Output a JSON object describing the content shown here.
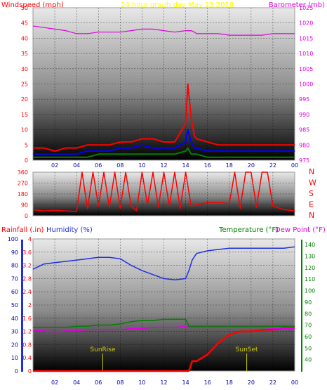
{
  "header": {
    "left_label": "Windspeed (mph)",
    "center_label": "24 hour graph day   May 13 2018",
    "right_label": "Barometer (mb)"
  },
  "colors": {
    "wind": "#ff0000",
    "gust": "#0000ff",
    "wind_avg": "#008000",
    "barometer": "#e000e0",
    "direction": "#ff0000",
    "humidity": "#2030e0",
    "rain": "#ff0000",
    "temperature": "#008000",
    "dewpoint": "#e000e0",
    "sun_marker": "#cccc00",
    "title": "#ffff00"
  },
  "x_ticks": [
    "02",
    "04",
    "06",
    "08",
    "10",
    "12",
    "14",
    "16",
    "18",
    "20",
    "22",
    "00"
  ],
  "chart_data": [
    {
      "type": "line",
      "name": "wind-and-barometer",
      "x": [
        0,
        1,
        2,
        3,
        4,
        5,
        6,
        7,
        8,
        9,
        10,
        11,
        12,
        13,
        14,
        14.2,
        14.5,
        14.8,
        15,
        16,
        17,
        18,
        19,
        20,
        21,
        22,
        23,
        24
      ],
      "series": [
        {
          "name": "windspeed",
          "axis": "left",
          "values": [
            4,
            4,
            3,
            4,
            4,
            5,
            5,
            5,
            6,
            6,
            7,
            7,
            6,
            6,
            12,
            25,
            14,
            8,
            7,
            6,
            5,
            5,
            5,
            5,
            5,
            5,
            5,
            5
          ]
        },
        {
          "name": "gust",
          "axis": "left",
          "values": [
            2,
            2,
            2,
            2,
            2,
            3,
            3,
            3,
            4,
            4,
            5,
            4,
            4,
            4,
            6,
            10,
            6,
            4,
            4,
            3,
            3,
            3,
            3,
            3,
            3,
            3,
            3,
            3
          ]
        },
        {
          "name": "average",
          "axis": "left",
          "values": [
            1,
            1,
            1,
            1,
            1,
            1,
            2,
            2,
            2,
            2,
            2,
            2,
            2,
            2,
            3,
            4,
            2,
            2,
            2,
            1,
            1,
            1,
            1,
            1,
            1,
            1,
            1,
            1
          ]
        },
        {
          "name": "barometer",
          "axis": "right",
          "values": [
            1019,
            1018.5,
            1018,
            1017.5,
            1016.5,
            1016.5,
            1017,
            1017,
            1017,
            1017.5,
            1018,
            1018,
            1017.5,
            1017,
            1017.5,
            1017.5,
            1017.5,
            1017,
            1016.5,
            1016.5,
            1016.5,
            1016,
            1016,
            1016,
            1016,
            1016.5,
            1016.5,
            1016.5
          ]
        }
      ],
      "left_axis": {
        "title": "Windspeed (mph)",
        "ylim": [
          0,
          50
        ],
        "ticks": [
          0,
          5,
          10,
          15,
          20,
          25,
          30,
          35,
          40,
          45,
          50
        ]
      },
      "right_axis": {
        "title": "Barometer (mb)",
        "ylim": [
          975,
          1025
        ],
        "ticks": [
          975,
          980,
          985,
          990,
          995,
          1000,
          1005,
          1010,
          1015,
          1020,
          1025
        ]
      }
    },
    {
      "type": "line",
      "name": "wind-direction",
      "x": [
        0,
        1,
        2,
        3,
        4,
        4.5,
        5,
        5.5,
        6,
        6.5,
        7,
        7.5,
        8,
        8.5,
        9,
        9.5,
        10,
        10.5,
        11,
        11.5,
        12,
        12.5,
        13,
        13.5,
        14,
        14.5,
        15,
        16,
        17,
        18,
        18.5,
        19,
        19.5,
        20,
        20.5,
        21,
        21.5,
        22,
        23,
        24
      ],
      "series": [
        {
          "name": "direction",
          "values": [
            50,
            40,
            45,
            40,
            35,
            360,
            60,
            360,
            80,
            360,
            70,
            360,
            60,
            360,
            80,
            40,
            360,
            90,
            360,
            70,
            360,
            80,
            360,
            60,
            360,
            80,
            90,
            110,
            110,
            100,
            360,
            60,
            360,
            360,
            70,
            360,
            360,
            80,
            50,
            40
          ]
        }
      ],
      "left_axis": {
        "ylim": [
          0,
          360
        ],
        "ticks": [
          0,
          90,
          180,
          270,
          360
        ]
      },
      "right_axis": {
        "labels": [
          "N",
          "W",
          "S",
          "E",
          "N"
        ]
      }
    },
    {
      "type": "line",
      "name": "rain-humidity-temperature",
      "x": [
        0,
        1,
        2,
        3,
        4,
        5,
        6,
        7,
        8,
        9,
        10,
        11,
        12,
        13,
        14,
        14.3,
        14.6,
        15,
        16,
        17,
        18,
        19,
        20,
        21,
        22,
        23,
        24
      ],
      "series": [
        {
          "name": "humidity",
          "axis": "humidity",
          "values": [
            77,
            81,
            82,
            83,
            84,
            85,
            86,
            86,
            85,
            80,
            76,
            73,
            70,
            69,
            70,
            76,
            84,
            89,
            91,
            92,
            93,
            93,
            93,
            93,
            93,
            93,
            94
          ]
        },
        {
          "name": "rainfall",
          "axis": "rain",
          "values": [
            0,
            0,
            0,
            0,
            0,
            0,
            0,
            0,
            0,
            0,
            0,
            0,
            0,
            0,
            0,
            0,
            0.3,
            0.3,
            0.5,
            0.85,
            1.1,
            1.2,
            1.2,
            1.25,
            1.25,
            1.3,
            1.3
          ]
        },
        {
          "name": "temperature",
          "axis": "temp",
          "values": [
            68,
            68,
            68,
            68,
            69,
            69,
            70,
            70,
            71,
            73,
            74,
            74,
            75,
            75,
            75,
            69,
            69,
            69,
            69,
            69,
            69,
            69,
            69,
            69,
            69,
            69,
            69
          ]
        },
        {
          "name": "dewpoint",
          "axis": "temp",
          "values": [
            65,
            65,
            64,
            65,
            65,
            66,
            66,
            66,
            66,
            67,
            67,
            68,
            68,
            68,
            69,
            68,
            68,
            68,
            68,
            68,
            68,
            68,
            68,
            68,
            67,
            67,
            67
          ]
        }
      ],
      "left_labels": {
        "rain": "Rainfall (.in)",
        "humidity": "Humidity (%)"
      },
      "right_labels": {
        "temperature": "Temperature (°F)",
        "dewpoint": "Dew Point (°F)"
      },
      "humidity_axis": {
        "ylim": [
          0,
          100
        ],
        "ticks": [
          0,
          10,
          20,
          30,
          40,
          50,
          60,
          70,
          80,
          90,
          100
        ]
      },
      "rain_axis": {
        "ylim": [
          0,
          4
        ],
        "ticks": [
          "0",
          "0.4",
          "0.8",
          "1.2",
          "1.6",
          "2",
          "2.4",
          "2.8",
          "3.2",
          "3.6",
          "4"
        ]
      },
      "temp_axis": {
        "ylim": [
          30,
          145
        ],
        "ticks": [
          40,
          50,
          60,
          70,
          80,
          90,
          100,
          110,
          120,
          130,
          140
        ]
      },
      "annotations": [
        {
          "text": "SunRise",
          "x": 6.4
        },
        {
          "text": "SunSet",
          "x": 19.6
        }
      ]
    }
  ]
}
